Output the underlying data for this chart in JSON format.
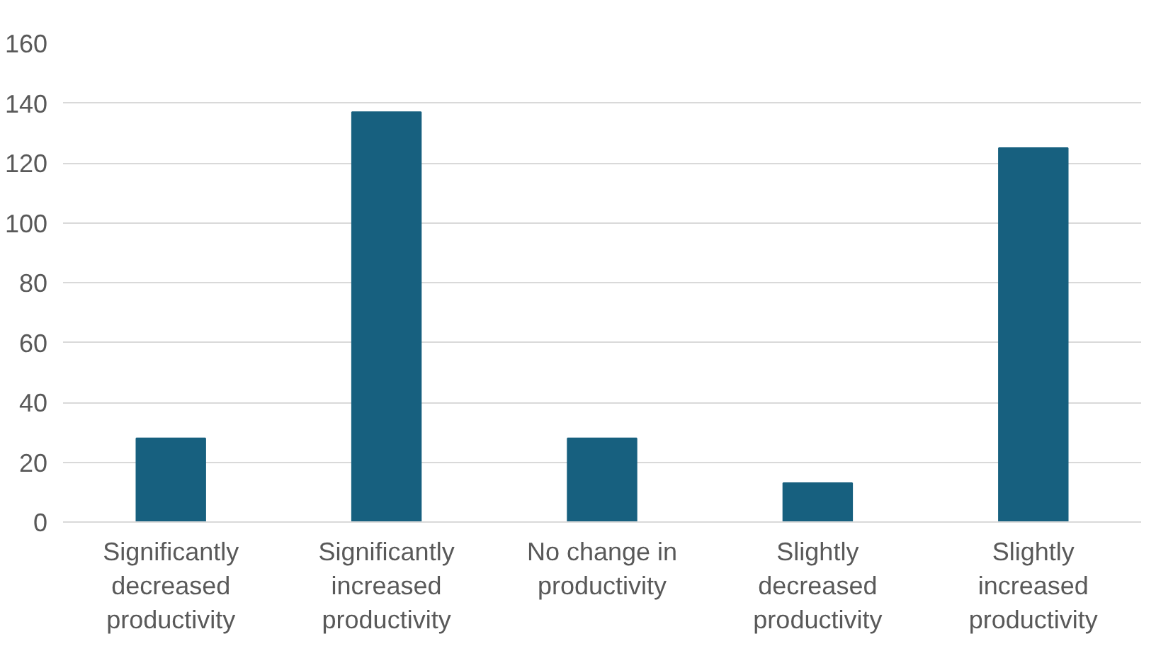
{
  "chart_data": {
    "type": "bar",
    "categories": [
      "Significantly decreased productivity",
      "Significantly increased productivity",
      "No change in productivity",
      "Slightly decreased productivity",
      "Slightly increased productivity"
    ],
    "values": [
      28,
      137,
      28,
      13,
      125
    ],
    "color": "#17607f",
    "ylim": [
      0,
      160
    ],
    "yticks": [
      0,
      20,
      40,
      60,
      80,
      100,
      120,
      140,
      160
    ],
    "grid": "y"
  }
}
